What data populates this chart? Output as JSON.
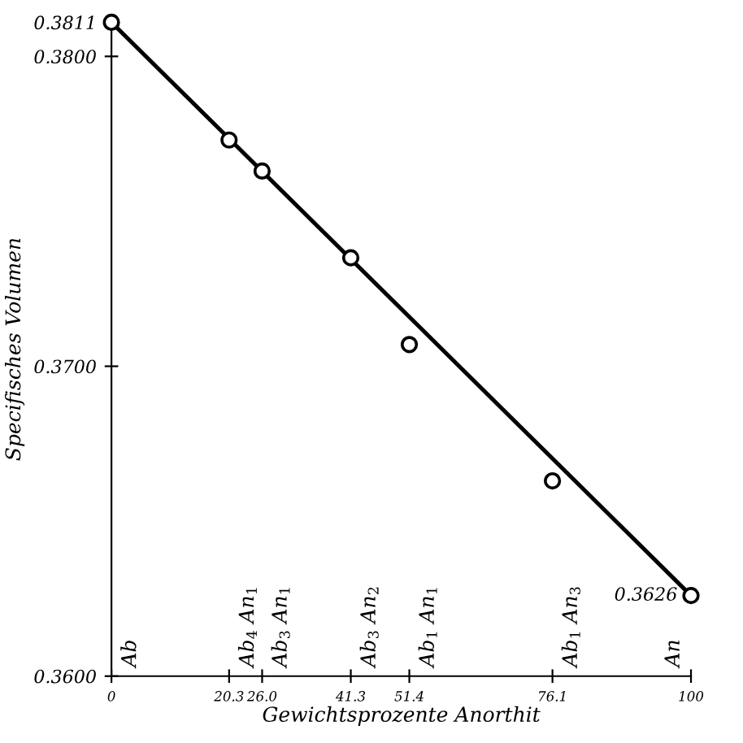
{
  "chart_data": {
    "type": "scatter",
    "xlabel": "Gewichtsprozente Anorthit",
    "ylabel": "Specifisches Volumen",
    "xlim": [
      0,
      100
    ],
    "ylim": [
      0.36,
      0.3811
    ],
    "xticks": [
      0,
      {
        "value": 20.3,
        "label": "20.3"
      },
      {
        "value": 26.0,
        "label": "26.0"
      },
      41.3,
      51.4,
      76.1,
      100
    ],
    "yticks": [
      {
        "value": 0.36,
        "label": "0.3600"
      },
      {
        "value": 0.37,
        "label": "0.3700"
      },
      {
        "value": 0.38,
        "label": "0.3800"
      },
      0.3811
    ],
    "grid": false,
    "legend": false,
    "marker": "circle",
    "series": [
      {
        "type": "line",
        "color": "#000000",
        "x": [
          0,
          100
        ],
        "values": [
          0.3811,
          0.3626
        ],
        "marker": "none"
      },
      {
        "color": "#000000",
        "x": [
          0,
          20.3,
          26.0,
          41.3,
          51.4,
          76.1,
          100
        ],
        "values": [
          0.3811,
          0.3773,
          0.3763,
          0.3735,
          0.3707,
          0.3663,
          0.3626
        ],
        "value_labels": [
          null,
          null,
          null,
          null,
          null,
          null,
          "0.3626"
        ]
      }
    ],
    "annotations": [
      "Ab",
      "Ab$_{4}$ An$_{1}$",
      "Ab$_{3}$ An$_{1}$",
      "Ab$_{3}$ An$_{2}$",
      "Ab$_{1}$ An$_{1}$",
      "Ab$_{1}$ An$_{3}$",
      "An"
    ]
  }
}
